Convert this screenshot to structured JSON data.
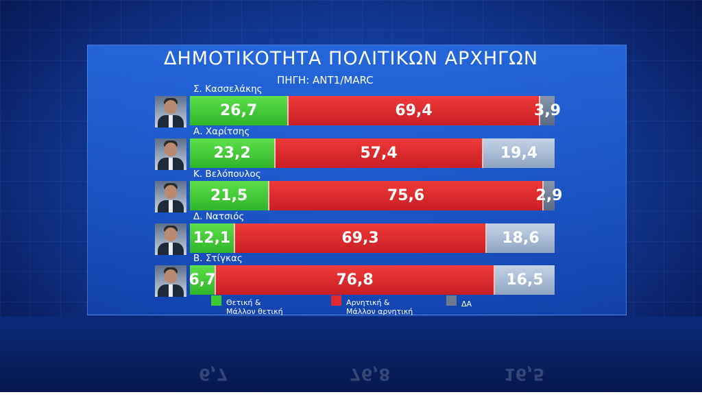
{
  "title": "ΔΗΜΟΤΙΚΟΤΗΤΑ ΠΟΛΙΤΙΚΩΝ ΑΡΧΗΓΩΝ",
  "subtitle": "ΠΗΓΗ: ANT1/MARC",
  "chart_data": {
    "type": "bar",
    "stacked": true,
    "orientation": "horizontal",
    "title": "ΔΗΜΟΤΙΚΟΤΗΤΑ ΠΟΛΙΤΙΚΩΝ ΑΡΧΗΓΩΝ",
    "subtitle": "ΠΗΓΗ: ANT1/MARC",
    "categories": [
      "Σ. Κασσελάκης",
      "Α. Χαρίτσης",
      "Κ. Βελόπουλος",
      "Δ. Νατσιός",
      "Β. Στίγκας"
    ],
    "series": [
      {
        "name": "Θετική & Μάλλον θετική",
        "color": "#3ccb34",
        "values": [
          26.7,
          23.2,
          21.5,
          12.1,
          6.7
        ],
        "labels": [
          "26,7",
          "23,2",
          "21,5",
          "12,1",
          "6,7"
        ]
      },
      {
        "name": "Αρνητική & Μάλλον αρνητική",
        "color": "#e02a2e",
        "values": [
          69.4,
          57.4,
          75.6,
          69.3,
          76.8
        ],
        "labels": [
          "69,4",
          "57,4",
          "75,6",
          "69,3",
          "76,8"
        ]
      },
      {
        "name": "ΔΑ",
        "color": "#6b7a92",
        "values": [
          3.9,
          19.4,
          2.9,
          18.6,
          16.5
        ],
        "labels": [
          "3,9",
          "19,4",
          "2,9",
          "18,6",
          "16,5"
        ]
      }
    ],
    "legend_position": "bottom",
    "grid": false
  },
  "legend": [
    {
      "line1": "Θετική &",
      "line2": "Μάλλον θετική",
      "color": "#3ccb34"
    },
    {
      "line1": "Αρνητική &",
      "line2": "Μάλλον αρνητική",
      "color": "#e02a2e"
    },
    {
      "line1": "ΔΑ",
      "line2": "",
      "color": "#6b7a92"
    }
  ]
}
